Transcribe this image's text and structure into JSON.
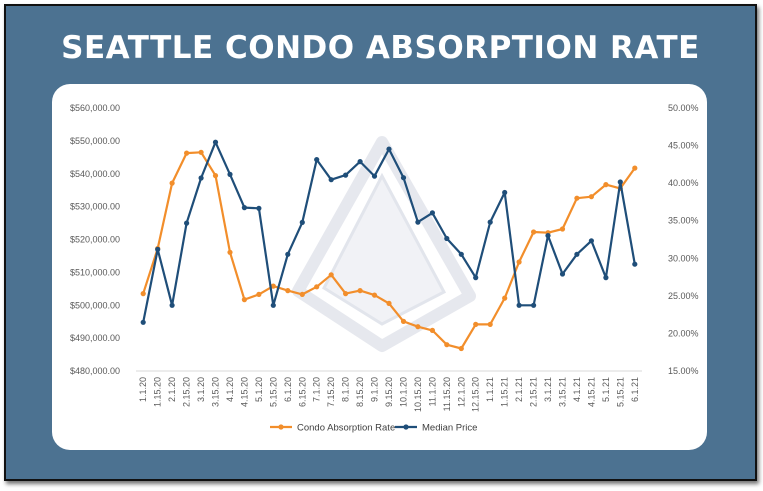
{
  "title": "SEATTLE CONDO ABSORPTION RATE",
  "colors": {
    "frame": "#4c7291",
    "absorption": "#f28e2b",
    "median": "#1f4e79"
  },
  "chart_data": {
    "type": "line",
    "title": "SEATTLE CONDO ABSORPTION RATE",
    "x": [
      "1.1.20",
      "1.15.20",
      "2.1.20",
      "2.15.20",
      "3.1.20",
      "3.15.20",
      "4.1.20",
      "4.15.20",
      "5.1.20",
      "5.15.20",
      "6.1.20",
      "6.15.20",
      "7.1.20",
      "7.15.20",
      "8.1.20",
      "8.15.20",
      "9.1.20",
      "9.15.20",
      "10.1.20",
      "10.15.20",
      "11.1.20",
      "11.15.20",
      "12.1.20",
      "12.15.20",
      "1.1.21",
      "1.15.21",
      "2.1.21",
      "2.15.21",
      "3.1.21",
      "3.15.21",
      "4.1.21",
      "4.15.21",
      "5.1.21",
      "5.15.21",
      "6.1.21"
    ],
    "y_left": {
      "range": [
        480000,
        560000
      ],
      "ticks": [
        "$480,000.00",
        "$490,000.00",
        "$500,000.00",
        "$510,000.00",
        "$520,000.00",
        "$530,000.00",
        "$540,000.00",
        "$550,000.00",
        "$560,000.00"
      ]
    },
    "y_right": {
      "range": [
        15,
        50
      ],
      "ticks": [
        "15.00%",
        "20.00%",
        "25.00%",
        "30.00%",
        "35.00%",
        "40.00%",
        "45.00%",
        "50.00%"
      ]
    },
    "series": [
      {
        "name": "Condo Absorption Rate",
        "axis": "right",
        "color": "#f28e2b",
        "values": [
          25.3,
          31.3,
          40.0,
          44.0,
          44.1,
          41.0,
          30.8,
          24.5,
          25.2,
          26.3,
          25.7,
          25.2,
          26.2,
          27.8,
          25.3,
          25.7,
          25.1,
          24.0,
          21.6,
          20.9,
          20.4,
          18.5,
          18.0,
          21.2,
          21.2,
          24.7,
          29.5,
          33.5,
          33.4,
          33.9,
          38.0,
          38.2,
          39.8,
          39.3,
          42.0
        ]
      },
      {
        "name": "Median Price",
        "axis": "left",
        "color": "#1f4e79",
        "values": [
          494800,
          517000,
          500000,
          525000,
          538700,
          549600,
          539800,
          529700,
          529500,
          500000,
          515500,
          525200,
          544300,
          538200,
          539600,
          543700,
          539300,
          547500,
          538800,
          525300,
          528100,
          520300,
          515500,
          508400,
          525300,
          534300,
          500000,
          500000,
          521200,
          509500,
          515500,
          519600,
          508400,
          537500,
          512500
        ]
      }
    ],
    "legend": "bottom",
    "grid": false
  }
}
